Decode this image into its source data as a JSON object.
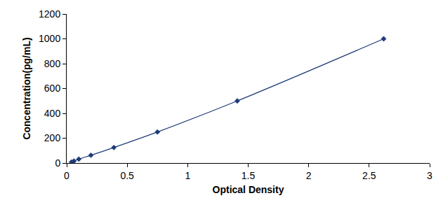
{
  "chart_data": {
    "type": "line",
    "x_label": "Optical Density",
    "y_label": "Concentration(pg/mL)",
    "x": [
      0.04,
      0.06,
      0.1,
      0.2,
      0.39,
      0.75,
      1.41,
      2.62
    ],
    "values": [
      7.8,
      15.6,
      31.2,
      62.5,
      125,
      250,
      500,
      1000
    ],
    "color": "#1f3c78",
    "marker": "diamond",
    "line_style": "solid",
    "xlim": [
      0,
      3
    ],
    "xticks": [
      0,
      0.5,
      1,
      1.5,
      2,
      2.5,
      3
    ],
    "ylim": [
      0,
      1200
    ],
    "yticks": [
      0,
      200,
      400,
      600,
      800,
      1000,
      1200
    ],
    "grid": false
  }
}
